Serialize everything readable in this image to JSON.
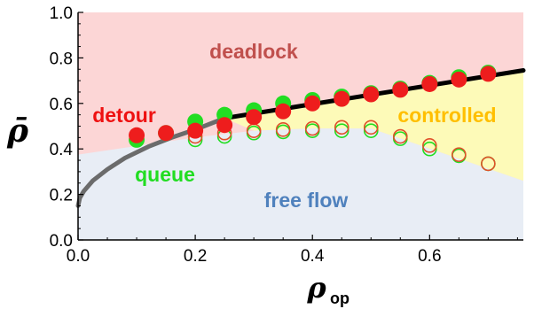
{
  "chart_data": {
    "type": "scatter",
    "xlabel": "ρ",
    "xlabel_sub": "op",
    "ylabel": "ρ̄",
    "xlim": [
      0.0,
      0.76
    ],
    "ylim": [
      0.0,
      1.0
    ],
    "xticks": [
      "0.0",
      "0.2",
      "0.4",
      "0.6"
    ],
    "xtick_values": [
      0.0,
      0.2,
      0.4,
      0.6
    ],
    "yticks": [
      "0.0",
      "0.2",
      "0.4",
      "0.6",
      "0.8",
      "1.0"
    ],
    "ytick_values": [
      0.0,
      0.2,
      0.4,
      0.6,
      0.8,
      1.0
    ],
    "grid": false,
    "colors": {
      "deadlock": "#fcd6d6",
      "free_flow": "#e8edf5",
      "controlled": "#fdfab8",
      "red": "#ee1d1d",
      "green": "#22dd22",
      "boundary_line": "#000000",
      "queue_curve": "#6b6b6b"
    },
    "regions": [
      {
        "label": "deadlock",
        "color": "#c0504d"
      },
      {
        "label": "detour",
        "color": "#ee1111"
      },
      {
        "label": "controlled",
        "color": "#ffbf00"
      },
      {
        "label": "queue",
        "color": "#22dd22"
      },
      {
        "label": "free flow",
        "color": "#4f81bd"
      }
    ],
    "boundary_upper": {
      "x": [
        0.25,
        0.76
      ],
      "y": [
        0.535,
        0.745
      ]
    },
    "controlled_lower": {
      "x": [
        0.5,
        0.76
      ],
      "y": [
        0.49,
        0.26
      ]
    },
    "free_flow_upper": {
      "x": [
        0.0,
        0.2,
        0.3,
        0.4,
        0.5
      ],
      "y": [
        0.375,
        0.45,
        0.48,
        0.49,
        0.49
      ]
    },
    "queue_curve": {
      "x": [
        0.0,
        0.003,
        0.01,
        0.025,
        0.05,
        0.08,
        0.12,
        0.16,
        0.2,
        0.25
      ],
      "y": [
        0.15,
        0.185,
        0.215,
        0.26,
        0.31,
        0.36,
        0.41,
        0.45,
        0.485,
        0.535
      ]
    },
    "series": [
      {
        "style": "filled",
        "color": "#22dd22",
        "x": [
          0.1,
          0.15,
          0.2,
          0.25,
          0.3,
          0.35,
          0.4,
          0.45,
          0.5,
          0.55,
          0.6,
          0.65,
          0.7
        ],
        "y": [
          0.44,
          0.47,
          0.52,
          0.55,
          0.57,
          0.6,
          0.615,
          0.63,
          0.645,
          0.665,
          0.69,
          0.715,
          0.735
        ]
      },
      {
        "style": "filled",
        "color": "#ee1d1d",
        "x": [
          0.1,
          0.15,
          0.2,
          0.25,
          0.3,
          0.35,
          0.4,
          0.45,
          0.5,
          0.55,
          0.6,
          0.65,
          0.7
        ],
        "y": [
          0.46,
          0.47,
          0.48,
          0.505,
          0.54,
          0.565,
          0.6,
          0.62,
          0.64,
          0.66,
          0.685,
          0.705,
          0.73
        ]
      },
      {
        "style": "open",
        "color": "#22dd22",
        "x": [
          0.2,
          0.25,
          0.3,
          0.35,
          0.4,
          0.45,
          0.5,
          0.55,
          0.6,
          0.65,
          0.7
        ],
        "y": [
          0.44,
          0.455,
          0.47,
          0.475,
          0.48,
          0.48,
          0.48,
          0.445,
          0.4,
          0.37,
          0.335
        ]
      },
      {
        "style": "open",
        "color": "#e0502a",
        "x": [
          0.2,
          0.25,
          0.3,
          0.35,
          0.4,
          0.45,
          0.5,
          0.55,
          0.6,
          0.65,
          0.7
        ],
        "y": [
          0.455,
          0.47,
          0.48,
          0.485,
          0.49,
          0.495,
          0.495,
          0.455,
          0.415,
          0.375,
          0.335
        ]
      }
    ]
  }
}
